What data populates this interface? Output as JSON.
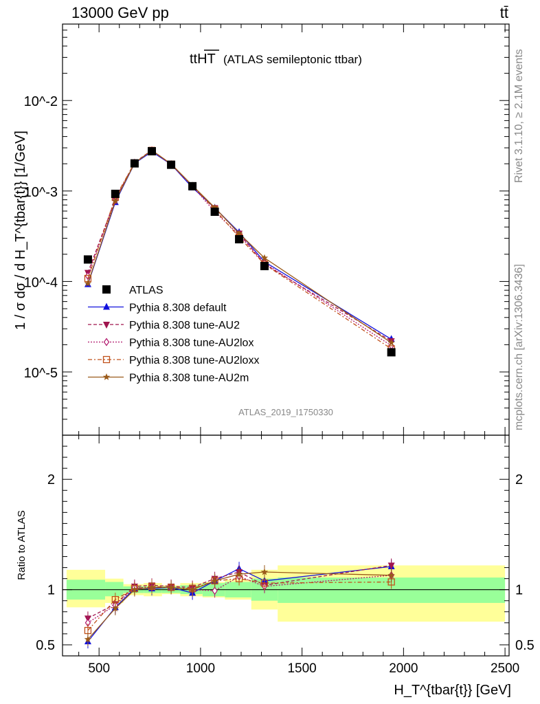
{
  "header": {
    "left": "13000 GeV pp",
    "right": "tt̄"
  },
  "side_labels": {
    "rivet": "Rivet 3.1.10, ≥ 2.1M events",
    "mcplots": "mcplots.cern.ch [arXiv:1306.3436]"
  },
  "analysis_id": "ATLAS_2019_I1750330",
  "chart_data": [
    {
      "type": "line",
      "title_main": "ttHT",
      "title_sub": "(ATLAS semileptonic ttbar)",
      "ylabel": "1 / σ dσ / d H_T^{tbar{t}} [1/GeV]",
      "xlabel": "H_T^{tbar{t}} [GeV]",
      "yscale": "log",
      "ylim": [
        2e-06,
        0.07
      ],
      "xlim": [
        320,
        2520
      ],
      "y_ticks": [
        "10^-5",
        "10^-4",
        "10^-3",
        "10^-2"
      ],
      "x_ticks": [
        "500",
        "1000",
        "1500",
        "2000",
        "2500"
      ],
      "legend_position": "center-left",
      "x": [
        445,
        580,
        675,
        760,
        855,
        960,
        1070,
        1190,
        1315,
        1940
      ],
      "series": [
        {
          "name": "ATLAS",
          "style": "data",
          "color": "#000000",
          "marker": "square",
          "values": [
            0.000175,
            0.00093,
            0.00202,
            0.00275,
            0.00195,
            0.00113,
            0.00059,
            0.000293,
            0.000148,
            1.65e-05
          ]
        },
        {
          "name": "Pythia 8.308 default",
          "color": "#1010dd",
          "dash": "",
          "marker": "triangle-up",
          "values": [
            9.3e-05,
            0.00075,
            0.00202,
            0.00272,
            0.00197,
            0.00109,
            0.00065,
            0.00035,
            0.000165,
            2.3e-05
          ]
        },
        {
          "name": "Pythia 8.308 tune-AU2",
          "color": "#a0154e",
          "dash": "5,3",
          "marker": "triangle-down",
          "values": [
            0.000125,
            0.00081,
            0.00207,
            0.00283,
            0.00198,
            0.00114,
            0.00065,
            0.00034,
            0.000155,
            2.2e-05
          ]
        },
        {
          "name": "Pythia 8.308 tune-AU2lox",
          "color": "#b0156b",
          "dash": "2,2",
          "marker": "diamond",
          "values": [
            0.000115,
            0.00079,
            0.00205,
            0.00281,
            0.00197,
            0.00113,
            0.00059,
            0.000326,
            0.00016,
            1.95e-05
          ]
        },
        {
          "name": "Pythia 8.308 tune-AU2loxx",
          "color": "#c0501a",
          "dash": "6,3,2,3",
          "marker": "square-open",
          "values": [
            0.000108,
            0.00085,
            0.00204,
            0.00281,
            0.00198,
            0.00114,
            0.000625,
            0.00031,
            0.000155,
            1.8e-05
          ]
        },
        {
          "name": "Pythia 8.308 tune-AU2m",
          "color": "#9a5a1a",
          "dash": "",
          "marker": "star",
          "values": [
            9.5e-05,
            0.000775,
            0.00203,
            0.00282,
            0.00199,
            0.00115,
            0.000655,
            0.00034,
            0.000182,
            2.1e-05
          ]
        }
      ]
    },
    {
      "type": "line",
      "ylabel": "Ratio to ATLAS",
      "xlabel": "H_T^{tbar{t}} [GeV]",
      "ylim": [
        0.4,
        2.4
      ],
      "y_ticks": [
        "0.5",
        "1",
        "2"
      ],
      "bins": [
        [
          340,
          530
        ],
        [
          530,
          620
        ],
        [
          620,
          720
        ],
        [
          720,
          810
        ],
        [
          810,
          900
        ],
        [
          900,
          1010
        ],
        [
          1010,
          1120
        ],
        [
          1120,
          1250
        ],
        [
          1250,
          1380
        ],
        [
          1380,
          2500
        ]
      ],
      "bands": {
        "green": [
          [
            0.91,
            1.09
          ],
          [
            0.94,
            1.07
          ],
          [
            0.97,
            1.03
          ],
          [
            0.97,
            1.03
          ],
          [
            0.97,
            1.03
          ],
          [
            0.96,
            1.04
          ],
          [
            0.94,
            1.06
          ],
          [
            0.93,
            1.07
          ],
          [
            0.9,
            1.1
          ],
          [
            0.88,
            1.11
          ]
        ],
        "yellow": [
          [
            0.84,
            1.18
          ],
          [
            0.88,
            1.1
          ],
          [
            0.95,
            1.05
          ],
          [
            0.94,
            1.06
          ],
          [
            0.96,
            1.04
          ],
          [
            0.94,
            1.06
          ],
          [
            0.93,
            1.07
          ],
          [
            0.91,
            1.09
          ],
          [
            0.82,
            1.18
          ],
          [
            0.71,
            1.22
          ]
        ]
      },
      "x": [
        445,
        580,
        675,
        760,
        855,
        960,
        1070,
        1190,
        1315,
        1940
      ],
      "series": [
        {
          "name": "Pythia 8.308 default",
          "values": [
            0.53,
            0.84,
            1.01,
            1.01,
            1.02,
            0.97,
            1.08,
            1.19,
            1.08,
            1.21
          ]
        },
        {
          "name": "Pythia 8.308 tune-AU2",
          "values": [
            0.74,
            0.87,
            1.03,
            1.04,
            1.03,
            1.02,
            1.1,
            1.16,
            1.04,
            1.22
          ]
        },
        {
          "name": "Pythia 8.308 tune-AU2lox",
          "values": [
            0.7,
            0.86,
            1.02,
            1.02,
            1.02,
            1.0,
            0.99,
            1.12,
            1.03,
            1.13
          ]
        },
        {
          "name": "Pythia 8.308 tune-AU2loxx",
          "values": [
            0.63,
            0.91,
            1.01,
            1.03,
            1.02,
            1.01,
            1.08,
            1.1,
            1.06,
            1.07
          ]
        },
        {
          "name": "Pythia 8.308 tune-AU2m",
          "values": [
            0.55,
            0.83,
            1.0,
            1.02,
            1.02,
            1.0,
            1.08,
            1.14,
            1.16,
            1.13
          ]
        }
      ],
      "reference_line": 1
    }
  ]
}
